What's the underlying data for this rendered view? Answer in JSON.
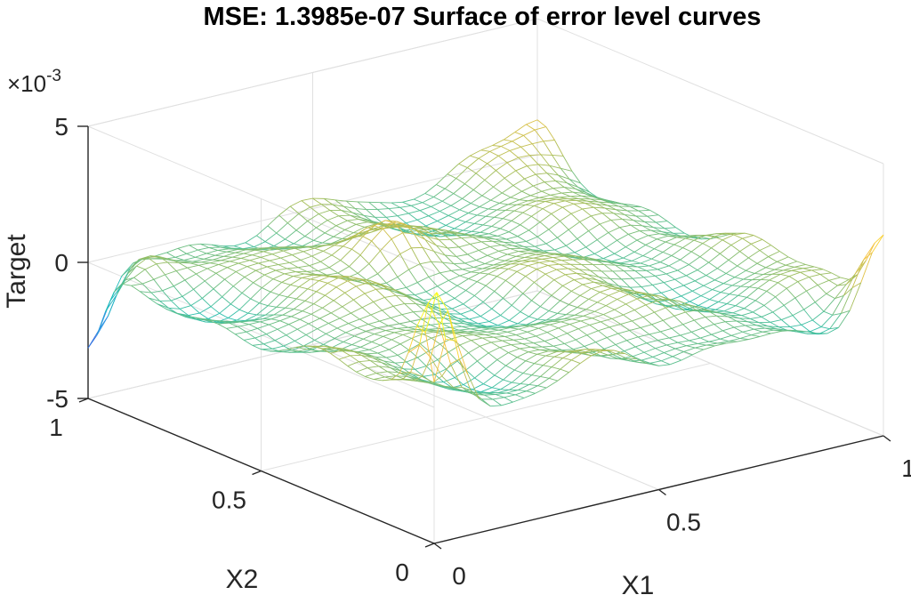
{
  "chart_data": {
    "type": "surface-mesh",
    "title": "MSE: 1.3985e-07 Surface of error level curves",
    "xlabel": "X1",
    "ylabel": "X2",
    "zlabel": "Target",
    "z_exponent_base": "×10",
    "z_exponent_power": "-3",
    "xlim": [
      0,
      1
    ],
    "ylim": [
      0,
      1
    ],
    "zlim": [
      -5,
      5
    ],
    "x_ticks": [
      {
        "value": 0,
        "label": "0"
      },
      {
        "value": 0.5,
        "label": "0.5"
      },
      {
        "value": 1,
        "label": "1"
      }
    ],
    "y_ticks": [
      {
        "value": 0,
        "label": "0"
      },
      {
        "value": 0.5,
        "label": "0.5"
      },
      {
        "value": 1,
        "label": "1"
      }
    ],
    "z_ticks": [
      {
        "value": -5,
        "label": "-5"
      },
      {
        "value": 0,
        "label": "0"
      },
      {
        "value": 5,
        "label": "5"
      }
    ],
    "colormap": [
      "#3e26a8",
      "#2f87ee",
      "#1fbfb8",
      "#a5be5b",
      "#fac33f",
      "#f9fb15"
    ],
    "clim": [
      -4,
      3.2
    ],
    "grid": true,
    "surface": {
      "resolution": 41,
      "baseline": -0.0002,
      "ripple_amplitude": 0.0007,
      "features": [
        {
          "x": 0.0,
          "y": 1.0,
          "amplitude": -0.0032,
          "width": 0.05
        },
        {
          "x": 1.0,
          "y": 0.0,
          "amplitude": 0.0029,
          "width": 0.05
        },
        {
          "x": 0.0,
          "y": 0.0,
          "amplitude": -0.0038,
          "width": 0.035
        },
        {
          "x": 0.02,
          "y": 0.02,
          "amplitude": 0.0061,
          "width": 0.035
        },
        {
          "x": 1.0,
          "y": 1.0,
          "amplitude": 0.0016,
          "width": 0.06
        },
        {
          "x": 0.45,
          "y": 0.7,
          "amplitude": 0.0018,
          "width": 0.06
        },
        {
          "x": 0.95,
          "y": 0.05,
          "amplitude": -0.0012,
          "width": 0.06
        },
        {
          "x": 0.05,
          "y": 0.95,
          "amplitude": 0.0012,
          "width": 0.05
        }
      ]
    }
  }
}
